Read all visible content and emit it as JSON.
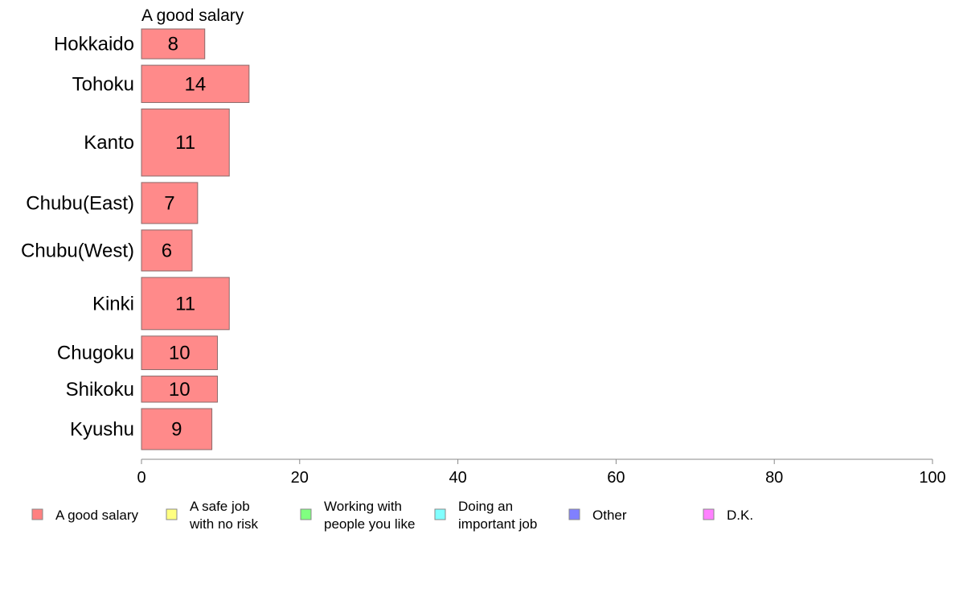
{
  "chart_data": {
    "type": "bar",
    "orientation": "horizontal",
    "header": "A good salary",
    "categories": [
      "Hokkaido",
      "Tohoku",
      "Kanto",
      "Chubu(East)",
      "Chubu(West)",
      "Kinki",
      "Chugoku",
      "Shikoku",
      "Kyushu"
    ],
    "series": [
      {
        "name": "A good salary",
        "values": [
          8,
          13.6,
          11.1,
          7.1,
          6.4,
          11.1,
          9.6,
          9.6,
          8.9
        ],
        "labels": [
          "8",
          "14",
          "11",
          "7",
          "6",
          "11",
          "10",
          "10",
          "9"
        ]
      }
    ],
    "bar_weights": [
      8,
      10,
      18,
      11,
      11,
      14,
      9,
      7,
      11
    ],
    "xlim": [
      0,
      100
    ],
    "xticks": [
      "0",
      "20",
      "40",
      "60",
      "80",
      "100"
    ],
    "grid": false,
    "legend": {
      "placement": "bottom",
      "entries": [
        {
          "label": "A good salary",
          "color": "#ff8080"
        },
        {
          "label": "A safe job\nwith no risk",
          "color": "#ffff80"
        },
        {
          "label": "Working with\npeople you like",
          "color": "#80ff80"
        },
        {
          "label": "Doing an\nimportant job",
          "color": "#80ffff"
        },
        {
          "label": "Other",
          "color": "#8080ff"
        },
        {
          "label": "D.K.",
          "color": "#ff80ff"
        }
      ]
    },
    "colors": {
      "bar_fill": "#ff8a8a",
      "bar_stroke": "#8a6a6a",
      "axis": "#888888"
    }
  }
}
